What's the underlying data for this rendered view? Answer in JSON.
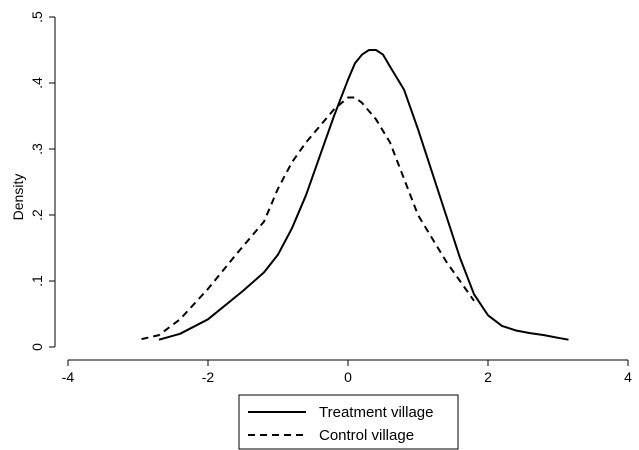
{
  "chart_data": {
    "type": "line",
    "title": "",
    "xlabel": "",
    "ylabel": "Density",
    "xlim": [
      -4,
      4
    ],
    "ylim": [
      0,
      0.5
    ],
    "xticks": [
      {
        "value": -4,
        "label": "-4"
      },
      {
        "value": -2,
        "label": "-2"
      },
      {
        "value": 0,
        "label": "0"
      },
      {
        "value": 2,
        "label": "2"
      },
      {
        "value": 4,
        "label": "4"
      }
    ],
    "yticks": [
      {
        "value": 0,
        "label": "0"
      },
      {
        "value": 0.1,
        "label": ".1"
      },
      {
        "value": 0.2,
        "label": ".2"
      },
      {
        "value": 0.3,
        "label": ".3"
      },
      {
        "value": 0.4,
        "label": ".4"
      },
      {
        "value": 0.5,
        "label": ".5"
      }
    ],
    "grid": false,
    "legend_position": "bottom",
    "series": [
      {
        "name": "Treatment village",
        "style": "solid",
        "color": "#000000",
        "points": [
          [
            -2.7,
            0.011
          ],
          [
            -2.4,
            0.02
          ],
          [
            -2.0,
            0.042
          ],
          [
            -1.5,
            0.085
          ],
          [
            -1.2,
            0.113
          ],
          [
            -1.0,
            0.14
          ],
          [
            -0.8,
            0.18
          ],
          [
            -0.6,
            0.23
          ],
          [
            -0.4,
            0.29
          ],
          [
            -0.2,
            0.35
          ],
          [
            0.0,
            0.405
          ],
          [
            0.1,
            0.43
          ],
          [
            0.2,
            0.443
          ],
          [
            0.3,
            0.45
          ],
          [
            0.4,
            0.45
          ],
          [
            0.5,
            0.443
          ],
          [
            0.6,
            0.425
          ],
          [
            0.8,
            0.39
          ],
          [
            1.0,
            0.33
          ],
          [
            1.2,
            0.265
          ],
          [
            1.4,
            0.2
          ],
          [
            1.6,
            0.135
          ],
          [
            1.8,
            0.08
          ],
          [
            2.0,
            0.048
          ],
          [
            2.2,
            0.032
          ],
          [
            2.4,
            0.025
          ],
          [
            2.6,
            0.021
          ],
          [
            2.8,
            0.018
          ],
          [
            3.0,
            0.014
          ],
          [
            3.15,
            0.011
          ]
        ]
      },
      {
        "name": "Control village",
        "style": "dashed",
        "color": "#000000",
        "points": [
          [
            -2.95,
            0.012
          ],
          [
            -2.7,
            0.018
          ],
          [
            -2.4,
            0.042
          ],
          [
            -2.0,
            0.088
          ],
          [
            -1.6,
            0.14
          ],
          [
            -1.2,
            0.19
          ],
          [
            -1.0,
            0.24
          ],
          [
            -0.8,
            0.28
          ],
          [
            -0.6,
            0.31
          ],
          [
            -0.4,
            0.335
          ],
          [
            -0.2,
            0.36
          ],
          [
            0.0,
            0.378
          ],
          [
            0.1,
            0.378
          ],
          [
            0.2,
            0.37
          ],
          [
            0.4,
            0.345
          ],
          [
            0.6,
            0.31
          ],
          [
            0.8,
            0.255
          ],
          [
            1.0,
            0.2
          ],
          [
            1.2,
            0.165
          ],
          [
            1.4,
            0.13
          ],
          [
            1.6,
            0.1
          ],
          [
            1.8,
            0.07
          ]
        ]
      }
    ]
  }
}
